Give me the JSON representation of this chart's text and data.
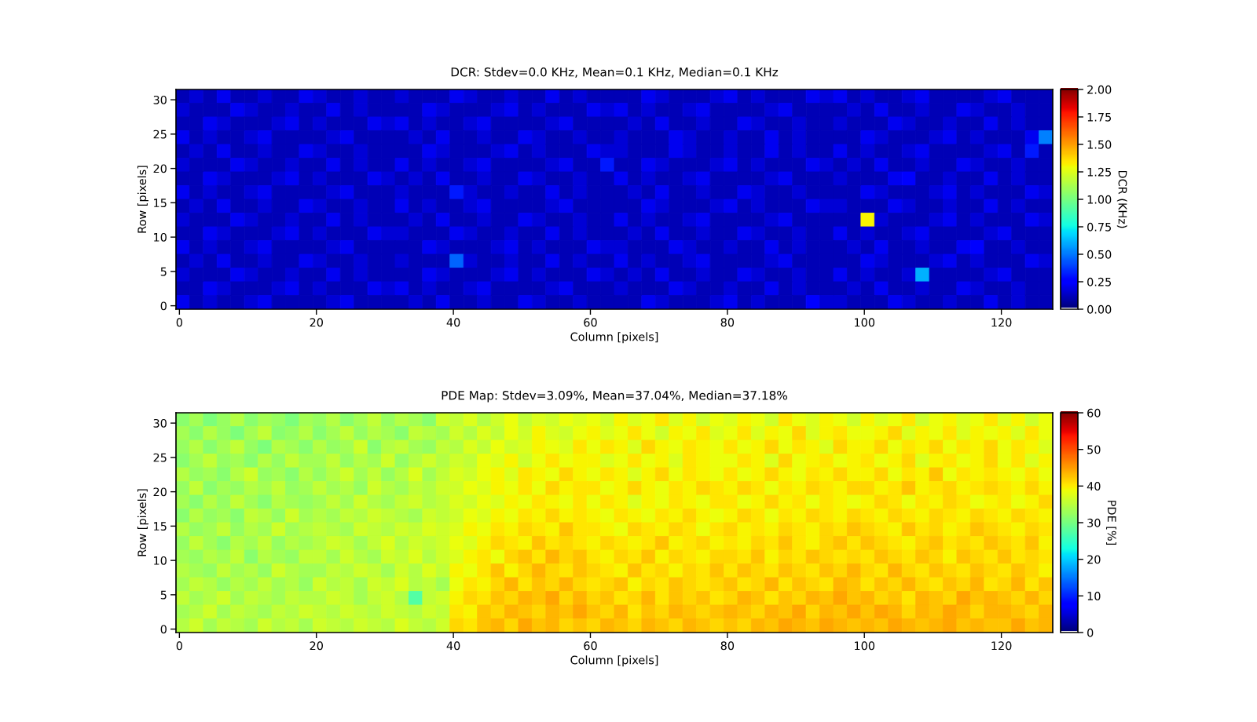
{
  "chart_data": [
    {
      "type": "heatmap",
      "title": "DCR: Stdev=0.0 KHz, Mean=0.1 KHz, Median=0.1 KHz",
      "xlabel": "Column [pixels]",
      "ylabel": "Row [pixels]",
      "clabel": "DCR (KHz)",
      "xlim": [
        -0.5,
        127.5
      ],
      "xticks": [
        0,
        20,
        40,
        60,
        80,
        100,
        120
      ],
      "ylim": [
        -0.5,
        31.5
      ],
      "yticks": [
        0,
        5,
        10,
        15,
        20,
        25,
        30
      ],
      "clim": [
        0,
        2
      ],
      "cticks": [
        {
          "value": 0,
          "label": "0.00"
        },
        {
          "value": 0.25,
          "label": "0.25"
        },
        {
          "value": 0.5,
          "label": "0.50"
        },
        {
          "value": 0.75,
          "label": "0.75"
        },
        {
          "value": 1,
          "label": "1.00"
        },
        {
          "value": 1.25,
          "label": "1.25"
        },
        {
          "value": 1.5,
          "label": "1.50"
        },
        {
          "value": 1.75,
          "label": "1.75"
        },
        {
          "value": 2,
          "label": "2.00"
        }
      ],
      "cells": [
        [
          0.1,
          0.15,
          0.1,
          0.2,
          0.1,
          0.1,
          0.15,
          0.1,
          0.1,
          0.2,
          0.15,
          0.1,
          0.1,
          0.15,
          0.1,
          0.1,
          0.15,
          0.1,
          0.1,
          0.1,
          0.2,
          0.15,
          0.1,
          0.1,
          0.15,
          0.1,
          0.1,
          0.2,
          0.1,
          0.15,
          0.1,
          0.1,
          0.1,
          0.1,
          0.2,
          0.15,
          0.1,
          0.1,
          0.1,
          0.15,
          0.2,
          0.1,
          0.15,
          0.1,
          0.1,
          0.1,
          0.2,
          0.15,
          0.2,
          0.1,
          0.15,
          0.1,
          0.1,
          0.15,
          0.2,
          0.1,
          0.1,
          0.1,
          0.1,
          0.15,
          0.2,
          0.1,
          0.1,
          0.1
        ],
        [
          0.15,
          0.1,
          0.1,
          0.1,
          0.2,
          0.15,
          0.1,
          0.1,
          0.15,
          0.1,
          0.1,
          0.2,
          0.1,
          0.15,
          0.1,
          0.1,
          0.1,
          0.1,
          0.2,
          0.15,
          0.1,
          0.1,
          0.1,
          0.15,
          0.2,
          0.1,
          0.15,
          0.1,
          0.1,
          0.1,
          0.2,
          0.15,
          0.2,
          0.1,
          0.15,
          0.1,
          0.1,
          0.15,
          0.2,
          0.1,
          0.1,
          0.1,
          0.1,
          0.15,
          0.2,
          0.1,
          0.1,
          0.1,
          0.1,
          0.15,
          0.1,
          0.2,
          0.1,
          0.1,
          0.15,
          0.1,
          0.1,
          0.2,
          0.15,
          0.1,
          0.1,
          0.15,
          0.1,
          0.1
        ],
        [
          0.1,
          0.1,
          0.2,
          0.15,
          0.1,
          0.1,
          0.1,
          0.15,
          0.2,
          0.1,
          0.15,
          0.1,
          0.1,
          0.1,
          0.2,
          0.15,
          0.2,
          0.1,
          0.15,
          0.1,
          0.1,
          0.15,
          0.2,
          0.1,
          0.1,
          0.1,
          0.1,
          0.15,
          0.2,
          0.1,
          0.1,
          0.1,
          0.1,
          0.15,
          0.1,
          0.2,
          0.1,
          0.1,
          0.15,
          0.1,
          0.1,
          0.2,
          0.15,
          0.1,
          0.1,
          0.15,
          0.1,
          0.1,
          0.15,
          0.1,
          0.1,
          0.1,
          0.2,
          0.15,
          0.1,
          0.1,
          0.15,
          0.1,
          0.1,
          0.2,
          0.1,
          0.15,
          0.1,
          0.1
        ],
        [
          0.2,
          0.1,
          0.15,
          0.1,
          0.1,
          0.15,
          0.2,
          0.1,
          0.1,
          0.1,
          0.1,
          0.15,
          0.2,
          0.1,
          0.1,
          0.1,
          0.1,
          0.15,
          0.1,
          0.2,
          0.1,
          0.1,
          0.15,
          0.1,
          0.1,
          0.2,
          0.15,
          0.1,
          0.1,
          0.15,
          0.1,
          0.1,
          0.15,
          0.1,
          0.1,
          0.1,
          0.2,
          0.15,
          0.1,
          0.1,
          0.15,
          0.1,
          0.1,
          0.2,
          0.1,
          0.15,
          0.1,
          0.1,
          0.1,
          0.1,
          0.2,
          0.15,
          0.1,
          0.1,
          0.1,
          0.15,
          0.2,
          0.1,
          0.15,
          0.1,
          0.1,
          0.1,
          0.2,
          0.5
        ],
        [
          0.1,
          0.15,
          0.1,
          0.2,
          0.1,
          0.1,
          0.15,
          0.1,
          0.1,
          0.2,
          0.15,
          0.1,
          0.1,
          0.15,
          0.1,
          0.1,
          0.1,
          0.1,
          0.2,
          0.15,
          0.1,
          0.1,
          0.1,
          0.15,
          0.2,
          0.1,
          0.15,
          0.1,
          0.1,
          0.1,
          0.2,
          0.15,
          0.15,
          0.1,
          0.1,
          0.1,
          0.2,
          0.15,
          0.1,
          0.1,
          0.15,
          0.1,
          0.1,
          0.2,
          0.1,
          0.15,
          0.1,
          0.1,
          0.2,
          0.1,
          0.15,
          0.1,
          0.1,
          0.15,
          0.2,
          0.1,
          0.1,
          0.1,
          0.1,
          0.15,
          0.2,
          0.1,
          0.3,
          0.1
        ],
        [
          0.15,
          0.1,
          0.1,
          0.1,
          0.2,
          0.15,
          0.1,
          0.1,
          0.15,
          0.1,
          0.1,
          0.2,
          0.1,
          0.15,
          0.1,
          0.1,
          0.2,
          0.1,
          0.15,
          0.1,
          0.1,
          0.15,
          0.2,
          0.1,
          0.1,
          0.1,
          0.1,
          0.15,
          0.2,
          0.1,
          0.1,
          0.3,
          0.1,
          0.1,
          0.2,
          0.15,
          0.1,
          0.1,
          0.1,
          0.15,
          0.2,
          0.1,
          0.15,
          0.1,
          0.1,
          0.1,
          0.2,
          0.15,
          0.1,
          0.15,
          0.1,
          0.2,
          0.1,
          0.1,
          0.15,
          0.1,
          0.1,
          0.2,
          0.15,
          0.1,
          0.1,
          0.15,
          0.1,
          0.1
        ],
        [
          0.1,
          0.1,
          0.2,
          0.15,
          0.1,
          0.1,
          0.1,
          0.15,
          0.2,
          0.1,
          0.15,
          0.1,
          0.1,
          0.1,
          0.2,
          0.15,
          0.1,
          0.15,
          0.1,
          0.2,
          0.1,
          0.1,
          0.15,
          0.1,
          0.1,
          0.2,
          0.15,
          0.1,
          0.1,
          0.15,
          0.1,
          0.1,
          0.2,
          0.1,
          0.15,
          0.1,
          0.1,
          0.15,
          0.2,
          0.1,
          0.1,
          0.1,
          0.1,
          0.15,
          0.2,
          0.1,
          0.1,
          0.1,
          0.15,
          0.1,
          0.1,
          0.1,
          0.2,
          0.25,
          0.1,
          0.1,
          0.15,
          0.1,
          0.1,
          0.2,
          0.1,
          0.15,
          0.1,
          0.1
        ],
        [
          0.2,
          0.1,
          0.15,
          0.1,
          0.1,
          0.15,
          0.2,
          0.1,
          0.1,
          0.1,
          0.1,
          0.15,
          0.2,
          0.1,
          0.1,
          0.1,
          0.15,
          0.1,
          0.1,
          0.1,
          0.3,
          0.15,
          0.1,
          0.1,
          0.15,
          0.1,
          0.1,
          0.2,
          0.1,
          0.15,
          0.1,
          0.1,
          0.1,
          0.15,
          0.1,
          0.2,
          0.1,
          0.1,
          0.15,
          0.1,
          0.1,
          0.2,
          0.15,
          0.1,
          0.1,
          0.15,
          0.1,
          0.1,
          0.1,
          0.1,
          0.2,
          0.15,
          0.1,
          0.1,
          0.1,
          0.15,
          0.2,
          0.1,
          0.15,
          0.1,
          0.1,
          0.1,
          0.2,
          0.15
        ],
        [
          0.1,
          0.15,
          0.1,
          0.2,
          0.1,
          0.1,
          0.15,
          0.1,
          0.1,
          0.2,
          0.15,
          0.1,
          0.1,
          0.15,
          0.1,
          0.1,
          0.2,
          0.1,
          0.15,
          0.1,
          0.1,
          0.15,
          0.2,
          0.1,
          0.1,
          0.1,
          0.1,
          0.15,
          0.2,
          0.1,
          0.1,
          0.1,
          0.1,
          0.1,
          0.2,
          0.15,
          0.1,
          0.1,
          0.1,
          0.15,
          0.2,
          0.1,
          0.15,
          0.1,
          0.1,
          0.1,
          0.2,
          0.15,
          0.15,
          0.1,
          0.1,
          0.1,
          0.2,
          0.15,
          0.1,
          0.1,
          0.15,
          0.1,
          0.1,
          0.2,
          0.1,
          0.15,
          0.1,
          0.1
        ],
        [
          0.15,
          0.1,
          0.1,
          0.1,
          0.2,
          0.15,
          0.1,
          0.1,
          0.15,
          0.1,
          0.1,
          0.2,
          0.1,
          0.15,
          0.1,
          0.1,
          0.1,
          0.15,
          0.1,
          0.2,
          0.1,
          0.1,
          0.15,
          0.1,
          0.1,
          0.2,
          0.15,
          0.1,
          0.1,
          0.15,
          0.1,
          0.1,
          0.2,
          0.1,
          0.15,
          0.1,
          0.1,
          0.15,
          0.2,
          0.1,
          0.1,
          0.1,
          0.1,
          0.15,
          0.2,
          0.1,
          0.1,
          0.1,
          0.1,
          0.1,
          1.3,
          0.15,
          0.1,
          0.1,
          0.1,
          0.15,
          0.2,
          0.1,
          0.15,
          0.1,
          0.1,
          0.1,
          0.2,
          0.15
        ],
        [
          0.1,
          0.1,
          0.2,
          0.15,
          0.1,
          0.1,
          0.1,
          0.15,
          0.2,
          0.1,
          0.15,
          0.1,
          0.1,
          0.1,
          0.2,
          0.15,
          0.15,
          0.1,
          0.1,
          0.1,
          0.2,
          0.15,
          0.1,
          0.1,
          0.15,
          0.1,
          0.1,
          0.2,
          0.1,
          0.15,
          0.1,
          0.1,
          0.1,
          0.15,
          0.1,
          0.2,
          0.1,
          0.1,
          0.15,
          0.1,
          0.1,
          0.2,
          0.15,
          0.1,
          0.1,
          0.15,
          0.1,
          0.1,
          0.2,
          0.1,
          0.15,
          0.1,
          0.1,
          0.15,
          0.2,
          0.1,
          0.1,
          0.1,
          0.1,
          0.15,
          0.2,
          0.1,
          0.1,
          0.1
        ],
        [
          0.2,
          0.1,
          0.15,
          0.1,
          0.1,
          0.15,
          0.2,
          0.1,
          0.1,
          0.1,
          0.1,
          0.15,
          0.2,
          0.1,
          0.1,
          0.1,
          0.1,
          0.1,
          0.2,
          0.15,
          0.1,
          0.1,
          0.1,
          0.15,
          0.2,
          0.1,
          0.15,
          0.1,
          0.1,
          0.1,
          0.2,
          0.15,
          0.15,
          0.1,
          0.1,
          0.1,
          0.2,
          0.15,
          0.1,
          0.1,
          0.15,
          0.1,
          0.1,
          0.2,
          0.1,
          0.15,
          0.1,
          0.1,
          0.1,
          0.15,
          0.1,
          0.2,
          0.1,
          0.1,
          0.15,
          0.1,
          0.1,
          0.2,
          0.25,
          0.1,
          0.1,
          0.15,
          0.1,
          0.1
        ],
        [
          0.1,
          0.15,
          0.1,
          0.2,
          0.1,
          0.1,
          0.15,
          0.1,
          0.1,
          0.2,
          0.15,
          0.1,
          0.1,
          0.15,
          0.1,
          0.1,
          0.15,
          0.1,
          0.1,
          0.1,
          0.45,
          0.15,
          0.1,
          0.1,
          0.15,
          0.1,
          0.1,
          0.2,
          0.1,
          0.15,
          0.1,
          0.1,
          0.2,
          0.1,
          0.15,
          0.1,
          0.1,
          0.15,
          0.2,
          0.1,
          0.1,
          0.1,
          0.1,
          0.15,
          0.2,
          0.1,
          0.1,
          0.1,
          0.1,
          0.1,
          0.2,
          0.15,
          0.1,
          0.1,
          0.1,
          0.15,
          0.2,
          0.1,
          0.15,
          0.1,
          0.1,
          0.1,
          0.2,
          0.15
        ],
        [
          0.15,
          0.1,
          0.1,
          0.1,
          0.2,
          0.15,
          0.1,
          0.1,
          0.15,
          0.1,
          0.1,
          0.2,
          0.1,
          0.15,
          0.1,
          0.1,
          0.1,
          0.1,
          0.2,
          0.15,
          0.1,
          0.1,
          0.1,
          0.15,
          0.2,
          0.1,
          0.15,
          0.1,
          0.1,
          0.1,
          0.2,
          0.15,
          0.1,
          0.15,
          0.1,
          0.2,
          0.1,
          0.1,
          0.15,
          0.1,
          0.1,
          0.2,
          0.15,
          0.1,
          0.1,
          0.15,
          0.1,
          0.1,
          0.2,
          0.1,
          0.15,
          0.1,
          0.1,
          0.15,
          0.6,
          0.1,
          0.1,
          0.1,
          0.1,
          0.15,
          0.2,
          0.1,
          0.1,
          0.1
        ],
        [
          0.1,
          0.1,
          0.2,
          0.15,
          0.1,
          0.1,
          0.1,
          0.15,
          0.2,
          0.1,
          0.15,
          0.1,
          0.1,
          0.1,
          0.2,
          0.15,
          0.2,
          0.1,
          0.15,
          0.1,
          0.1,
          0.15,
          0.2,
          0.1,
          0.1,
          0.1,
          0.1,
          0.15,
          0.2,
          0.1,
          0.1,
          0.1,
          0.15,
          0.1,
          0.1,
          0.1,
          0.2,
          0.15,
          0.1,
          0.1,
          0.15,
          0.1,
          0.1,
          0.2,
          0.1,
          0.15,
          0.1,
          0.1,
          0.1,
          0.15,
          0.1,
          0.2,
          0.1,
          0.1,
          0.15,
          0.1,
          0.1,
          0.2,
          0.15,
          0.1,
          0.1,
          0.15,
          0.1,
          0.1
        ],
        [
          0.2,
          0.1,
          0.15,
          0.1,
          0.1,
          0.15,
          0.2,
          0.1,
          0.1,
          0.1,
          0.1,
          0.15,
          0.2,
          0.1,
          0.1,
          0.1,
          0.1,
          0.15,
          0.1,
          0.2,
          0.1,
          0.1,
          0.15,
          0.1,
          0.1,
          0.2,
          0.15,
          0.1,
          0.1,
          0.15,
          0.1,
          0.1,
          0.1,
          0.1,
          0.2,
          0.15,
          0.1,
          0.1,
          0.1,
          0.15,
          0.2,
          0.1,
          0.15,
          0.1,
          0.1,
          0.1,
          0.25,
          0.15,
          0.15,
          0.1,
          0.1,
          0.1,
          0.2,
          0.15,
          0.1,
          0.1,
          0.15,
          0.1,
          0.1,
          0.2,
          0.1,
          0.15,
          0.1,
          0.1
        ]
      ]
    },
    {
      "type": "heatmap",
      "title": "PDE Map: Stdev=3.09%, Mean=37.04%, Median=37.18%",
      "xlabel": "Column [pixels]",
      "ylabel": "Row [pixels]",
      "clabel": "PDE [%]",
      "xlim": [
        -0.5,
        127.5
      ],
      "xticks": [
        0,
        20,
        40,
        60,
        80,
        100,
        120
      ],
      "ylim": [
        -0.5,
        31.5
      ],
      "yticks": [
        0,
        5,
        10,
        15,
        20,
        25,
        30
      ],
      "clim": [
        0,
        60
      ],
      "cticks": [
        0,
        10,
        20,
        30,
        40,
        50,
        60
      ],
      "cells": [
        [
          31,
          33,
          30,
          32,
          34,
          31,
          33,
          32,
          30,
          33,
          32,
          34,
          31,
          33,
          35,
          32,
          34,
          33,
          31,
          36,
          35,
          37,
          34,
          36,
          38,
          35,
          37,
          36,
          38,
          37,
          38,
          36,
          39,
          37,
          38,
          40,
          37,
          39,
          36,
          38,
          37,
          39,
          38,
          36,
          40,
          38,
          37,
          39,
          38,
          36,
          39,
          37,
          38,
          40,
          36,
          38,
          39,
          37,
          38,
          40,
          37,
          39,
          36,
          38
        ],
        [
          33,
          31,
          34,
          32,
          30,
          33,
          35,
          31,
          32,
          34,
          31,
          33,
          35,
          32,
          34,
          33,
          31,
          35,
          34,
          33,
          36,
          34,
          37,
          35,
          38,
          36,
          39,
          37,
          36,
          38,
          39,
          37,
          38,
          40,
          38,
          36,
          39,
          38,
          40,
          37,
          38,
          40,
          37,
          39,
          38,
          41,
          37,
          39,
          40,
          38,
          38,
          39,
          41,
          37,
          39,
          38,
          40,
          37,
          39,
          38,
          39,
          37,
          40,
          38
        ],
        [
          32,
          34,
          31,
          33,
          35,
          32,
          30,
          34,
          33,
          31,
          34,
          32,
          33,
          36,
          31,
          34,
          35,
          33,
          32,
          35,
          34,
          37,
          35,
          38,
          36,
          37,
          39,
          38,
          37,
          40,
          38,
          40,
          39,
          37,
          41,
          39,
          38,
          40,
          39,
          38,
          40,
          38,
          39,
          41,
          38,
          40,
          39,
          37,
          41,
          39,
          39,
          41,
          38,
          40,
          39,
          41,
          38,
          40,
          39,
          41,
          38,
          40,
          39,
          37
        ],
        [
          31,
          33,
          35,
          32,
          33,
          31,
          34,
          32,
          35,
          33,
          33,
          35,
          32,
          34,
          33,
          36,
          32,
          34,
          36,
          34,
          36,
          35,
          38,
          37,
          39,
          36,
          38,
          40,
          38,
          39,
          39,
          37,
          38,
          40,
          38,
          39,
          37,
          40,
          39,
          38,
          38,
          40,
          39,
          37,
          41,
          38,
          39,
          40,
          38,
          39,
          40,
          38,
          39,
          41,
          37,
          39,
          40,
          38,
          39,
          41,
          38,
          40,
          37,
          39
        ],
        [
          34,
          32,
          33,
          31,
          34,
          36,
          32,
          33,
          31,
          34,
          32,
          34,
          36,
          33,
          35,
          32,
          34,
          37,
          33,
          35,
          37,
          36,
          38,
          39,
          37,
          40,
          39,
          38,
          41,
          39,
          38,
          40,
          39,
          37,
          39,
          41,
          38,
          40,
          39,
          38,
          40,
          38,
          39,
          41,
          39,
          38,
          40,
          39,
          41,
          39,
          39,
          41,
          38,
          40,
          39,
          42,
          38,
          40,
          39,
          40,
          39,
          38,
          40,
          38
        ],
        [
          32,
          35,
          31,
          33,
          32,
          34,
          33,
          35,
          32,
          33,
          35,
          33,
          34,
          32,
          36,
          34,
          33,
          35,
          34,
          36,
          36,
          38,
          37,
          39,
          38,
          40,
          38,
          41,
          39,
          40,
          40,
          38,
          39,
          41,
          39,
          38,
          40,
          39,
          41,
          40,
          39,
          41,
          40,
          38,
          40,
          39,
          41,
          40,
          39,
          41,
          41,
          39,
          40,
          42,
          39,
          40,
          41,
          39,
          40,
          41,
          40,
          39,
          41,
          39
        ],
        [
          33,
          31,
          34,
          32,
          35,
          33,
          31,
          34,
          33,
          32,
          33,
          35,
          33,
          36,
          34,
          33,
          35,
          36,
          34,
          35,
          37,
          36,
          38,
          37,
          39,
          38,
          40,
          39,
          38,
          40,
          38,
          40,
          39,
          37,
          39,
          38,
          40,
          39,
          38,
          40,
          40,
          38,
          39,
          41,
          39,
          40,
          38,
          40,
          39,
          38,
          39,
          41,
          40,
          38,
          40,
          39,
          41,
          40,
          38,
          39,
          40,
          38,
          39,
          41
        ],
        [
          31,
          34,
          32,
          33,
          31,
          35,
          34,
          32,
          36,
          33,
          34,
          33,
          35,
          34,
          36,
          35,
          34,
          33,
          36,
          35,
          36,
          38,
          37,
          39,
          38,
          40,
          39,
          41,
          39,
          40,
          39,
          38,
          40,
          39,
          38,
          40,
          39,
          41,
          39,
          38,
          39,
          41,
          40,
          38,
          40,
          39,
          41,
          40,
          39,
          41,
          40,
          39,
          41,
          40,
          39,
          41,
          40,
          39,
          41,
          40,
          39,
          41,
          40,
          39
        ],
        [
          34,
          32,
          33,
          35,
          32,
          34,
          33,
          36,
          33,
          34,
          35,
          34,
          33,
          36,
          35,
          34,
          36,
          35,
          37,
          36,
          37,
          39,
          38,
          40,
          39,
          41,
          40,
          39,
          42,
          40,
          40,
          39,
          38,
          41,
          40,
          39,
          41,
          40,
          38,
          40,
          41,
          39,
          40,
          39,
          41,
          40,
          39,
          41,
          40,
          42,
          41,
          40,
          39,
          42,
          40,
          41,
          39,
          40,
          42,
          41,
          40,
          39,
          41,
          40
        ],
        [
          32,
          35,
          33,
          31,
          34,
          33,
          35,
          32,
          34,
          33,
          34,
          36,
          35,
          33,
          35,
          37,
          34,
          36,
          35,
          36,
          38,
          37,
          39,
          41,
          40,
          39,
          42,
          40,
          41,
          40,
          39,
          41,
          40,
          39,
          40,
          42,
          39,
          40,
          41,
          39,
          40,
          39,
          41,
          40,
          42,
          40,
          39,
          41,
          42,
          40,
          42,
          41,
          40,
          39,
          41,
          42,
          40,
          41,
          40,
          42,
          41,
          40,
          42,
          39
        ],
        [
          33,
          32,
          34,
          33,
          35,
          31,
          34,
          33,
          32,
          35,
          35,
          33,
          36,
          34,
          33,
          36,
          35,
          37,
          34,
          36,
          37,
          39,
          40,
          38,
          41,
          42,
          40,
          43,
          41,
          42,
          40,
          39,
          41,
          40,
          42,
          39,
          41,
          40,
          39,
          41,
          41,
          40,
          42,
          39,
          41,
          40,
          42,
          41,
          40,
          41,
          40,
          42,
          41,
          40,
          42,
          41,
          39,
          42,
          41,
          40,
          42,
          40,
          41,
          40
        ],
        [
          34,
          33,
          32,
          35,
          33,
          34,
          32,
          36,
          34,
          33,
          33,
          35,
          34,
          36,
          35,
          33,
          36,
          34,
          37,
          35,
          39,
          38,
          40,
          42,
          39,
          41,
          43,
          41,
          40,
          42,
          41,
          40,
          39,
          42,
          40,
          41,
          39,
          41,
          40,
          42,
          40,
          42,
          41,
          40,
          42,
          41,
          40,
          42,
          41,
          43,
          41,
          40,
          43,
          41,
          40,
          42,
          41,
          40,
          42,
          41,
          40,
          42,
          41,
          39
        ],
        [
          33,
          35,
          34,
          32,
          34,
          33,
          35,
          33,
          34,
          32,
          36,
          34,
          35,
          33,
          36,
          35,
          37,
          34,
          35,
          33,
          38,
          40,
          39,
          41,
          43,
          40,
          42,
          41,
          43,
          41,
          40,
          41,
          42,
          39,
          41,
          40,
          42,
          41,
          40,
          41,
          42,
          40,
          41,
          43,
          40,
          42,
          41,
          40,
          43,
          42,
          40,
          42,
          41,
          43,
          41,
          40,
          42,
          41,
          43,
          40,
          41,
          43,
          40,
          42
        ],
        [
          35,
          33,
          34,
          36,
          33,
          35,
          34,
          33,
          35,
          34,
          34,
          36,
          35,
          33,
          35,
          36,
          34,
          27,
          35,
          36,
          39,
          41,
          40,
          42,
          41,
          43,
          42,
          44,
          41,
          43,
          41,
          42,
          40,
          41,
          43,
          40,
          42,
          41,
          42,
          40,
          41,
          43,
          42,
          40,
          42,
          41,
          43,
          42,
          44,
          42,
          43,
          41,
          42,
          40,
          43,
          42,
          41,
          44,
          42,
          43,
          42,
          41,
          43,
          41
        ],
        [
          33,
          34,
          36,
          33,
          35,
          34,
          33,
          35,
          34,
          36,
          35,
          34,
          36,
          35,
          34,
          36,
          35,
          34,
          36,
          35,
          40,
          39,
          42,
          41,
          43,
          42,
          41,
          43,
          42,
          44,
          42,
          41,
          43,
          40,
          42,
          41,
          43,
          42,
          41,
          42,
          43,
          42,
          41,
          43,
          42,
          44,
          41,
          43,
          42,
          44,
          42,
          44,
          43,
          41,
          43,
          42,
          44,
          43,
          41,
          43,
          43,
          42,
          41,
          43
        ],
        [
          34,
          36,
          33,
          35,
          34,
          33,
          36,
          34,
          35,
          33,
          36,
          35,
          34,
          36,
          35,
          34,
          37,
          35,
          34,
          36,
          41,
          40,
          42,
          43,
          41,
          44,
          42,
          43,
          41,
          42,
          41,
          43,
          42,
          41,
          43,
          42,
          41,
          43,
          42,
          41,
          42,
          41,
          43,
          42,
          44,
          43,
          42,
          44,
          43,
          42,
          43,
          42,
          44,
          43,
          42,
          43,
          44,
          42,
          43,
          42,
          42,
          44,
          42,
          43
        ]
      ]
    }
  ]
}
